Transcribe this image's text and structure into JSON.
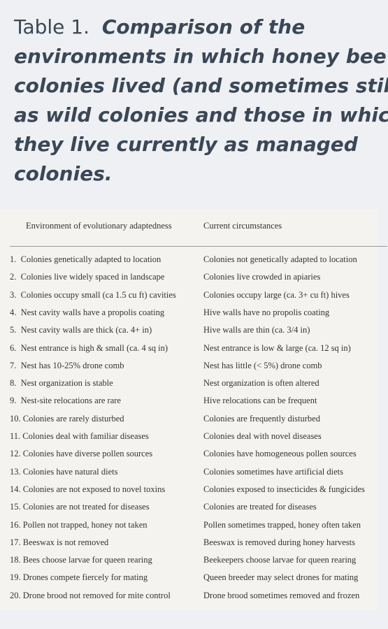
{
  "header": {
    "label": "Table 1.",
    "lines": [
      "Comparison of the",
      "environments in which honey bee",
      "colonies lived (and sometimes still do)",
      "as wild colonies and those in which",
      "they live currently as managed",
      "colonies."
    ]
  },
  "table": {
    "columns": [
      "Environment of evolutionary adaptedness",
      "Current circumstances"
    ],
    "rows": [
      [
        "1.  Colonies genetically adapted to location",
        "Colonies not genetically adapted to location"
      ],
      [
        "2.  Colonies live widely spaced in landscape",
        "Colonies live crowded in apiaries"
      ],
      [
        "3.  Colonies occupy small (ca 1.5 cu ft) cavities",
        "Colonies occupy large (ca. 3+ cu ft) hives"
      ],
      [
        "4.  Nest cavity walls have a propolis coating",
        "Hive walls have no propolis coating"
      ],
      [
        "5.  Nest cavity walls are thick (ca. 4+ in)",
        "Hive walls are thin (ca. 3/4 in)"
      ],
      [
        "6.  Nest entrance is high & small (ca. 4 sq in)",
        "Nest entrance is low & large (ca. 12 sq in)"
      ],
      [
        "7.  Nest has 10-25% drone comb",
        "Nest has little (< 5%) drone comb"
      ],
      [
        "8.  Nest organization is stable",
        "Nest organization is often altered"
      ],
      [
        "9.  Nest-site relocations are rare",
        "Hive relocations can be frequent"
      ],
      [
        "10. Colonies are rarely disturbed",
        "Colonies are frequently disturbed"
      ],
      [
        "11. Colonies deal with familiar diseases",
        "Colonies deal with novel diseases"
      ],
      [
        "12. Colonies have diverse pollen sources",
        "Colonies have homogeneous pollen sources"
      ],
      [
        "13. Colonies have natural diets",
        "Colonies sometimes have artificial diets"
      ],
      [
        "14. Colonies are not exposed to novel toxins",
        "Colonies exposed to insecticides & fungicides"
      ],
      [
        "15. Colonies are not treated for diseases",
        "Colonies are treated for diseases"
      ],
      [
        "16. Pollen not trapped, honey not taken",
        "Pollen sometimes trapped, honey often taken"
      ],
      [
        "17. Beeswax is not removed",
        "Beeswax is removed during honey harvests"
      ],
      [
        "18. Bees choose larvae for queen rearing",
        "Beekeepers choose larvae for queen rearing"
      ],
      [
        "19. Drones compete fiercely for mating",
        "Queen breeder may select drones for mating"
      ],
      [
        "20. Drone brood not removed for mite control",
        "Drone brood sometimes removed and frozen"
      ]
    ]
  }
}
